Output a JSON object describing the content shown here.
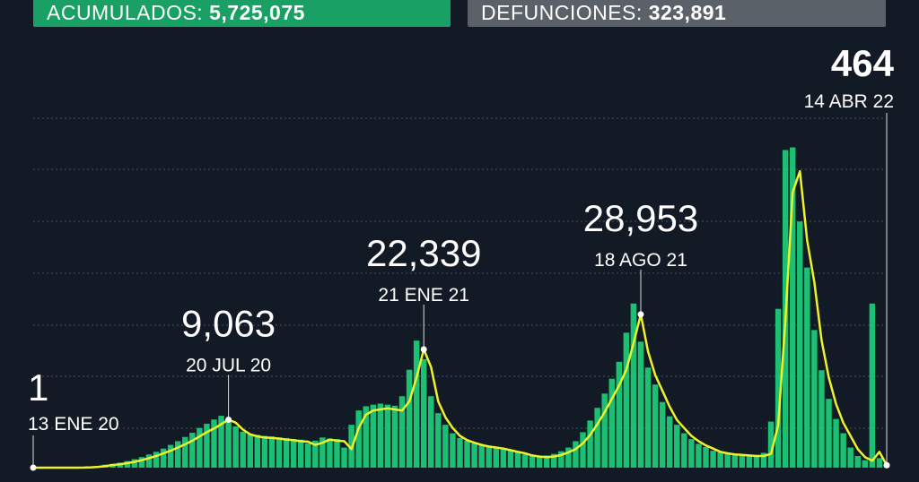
{
  "header": {
    "accumulated": {
      "label": "ACUMULADOS:",
      "value": "5,725,075"
    },
    "deaths": {
      "label": "DEFUNCIONES:",
      "value": "323,891"
    }
  },
  "chart_data": {
    "type": "combo",
    "ylim": [
      0,
      66000
    ],
    "series": [
      {
        "type": "bar",
        "color": "#1ed37b",
        "values": [
          1,
          0,
          0,
          0,
          3,
          6,
          25,
          70,
          170,
          340,
          560,
          720,
          950,
          1250,
          1600,
          2000,
          2500,
          3000,
          3600,
          4300,
          5000,
          5800,
          6600,
          7500,
          8300,
          9100,
          9800,
          9000,
          7800,
          6800,
          6400,
          6200,
          6000,
          5900,
          5700,
          5600,
          5400,
          5300,
          4600,
          5100,
          5700,
          5500,
          5400,
          3800,
          8100,
          10800,
          11600,
          11900,
          12100,
          11900,
          11700,
          13500,
          18500,
          24000,
          20500,
          13500,
          10300,
          8100,
          6500,
          5600,
          5100,
          4600,
          4300,
          4100,
          3900,
          3600,
          3200,
          2900,
          2500,
          2300,
          2200,
          2300,
          2600,
          3100,
          3800,
          5000,
          6700,
          8900,
          11300,
          14000,
          16800,
          20000,
          25500,
          31000,
          23800,
          18900,
          15700,
          12400,
          9700,
          8100,
          6500,
          5400,
          4500,
          3900,
          3200,
          2900,
          2700,
          2600,
          2500,
          2400,
          2400,
          2800,
          8700,
          30000,
          60000,
          60500,
          46500,
          37800,
          26000,
          18400,
          13000,
          9200,
          6500,
          3800,
          2200,
          1400,
          31000,
          1800,
          464
        ]
      },
      {
        "type": "line",
        "color": "#eef22b",
        "values": [
          1,
          0,
          0,
          0,
          0,
          2,
          5,
          20,
          60,
          150,
          300,
          500,
          650,
          850,
          1100,
          1400,
          1800,
          2200,
          2700,
          3200,
          3800,
          4400,
          5100,
          5900,
          6700,
          7400,
          8200,
          9063,
          8500,
          7200,
          6300,
          5900,
          5700,
          5600,
          5500,
          5300,
          5200,
          5000,
          4900,
          4300,
          4700,
          5300,
          5100,
          5000,
          3500,
          7500,
          10000,
          10800,
          11000,
          11200,
          11000,
          10800,
          12500,
          17000,
          22339,
          19000,
          12500,
          9500,
          7500,
          6000,
          5200,
          4700,
          4300,
          4000,
          3800,
          3600,
          3300,
          3000,
          2700,
          2300,
          2100,
          2000,
          2100,
          2400,
          2900,
          3500,
          4600,
          6200,
          8200,
          10500,
          13000,
          15500,
          18500,
          23500,
          28953,
          22000,
          17500,
          14500,
          11500,
          9000,
          7500,
          6000,
          5000,
          4200,
          3600,
          3000,
          2700,
          2500,
          2400,
          2300,
          2200,
          2200,
          2600,
          8000,
          28000,
          52000,
          56000,
          43000,
          35000,
          24000,
          17000,
          12000,
          8500,
          6000,
          3500,
          2000,
          1300,
          3000,
          464
        ]
      }
    ],
    "annotations": [
      {
        "value": 1,
        "label": "1",
        "date": "13 ENE 20"
      },
      {
        "value": 9063,
        "label": "9,063",
        "date": "20 JUL 20"
      },
      {
        "value": 22339,
        "label": "22,339",
        "date": "21 ENE 21"
      },
      {
        "value": 28953,
        "label": "28,953",
        "date": "18 AGO 21"
      },
      {
        "value": 464,
        "label": "464",
        "date": "14 ABR 22"
      }
    ]
  }
}
